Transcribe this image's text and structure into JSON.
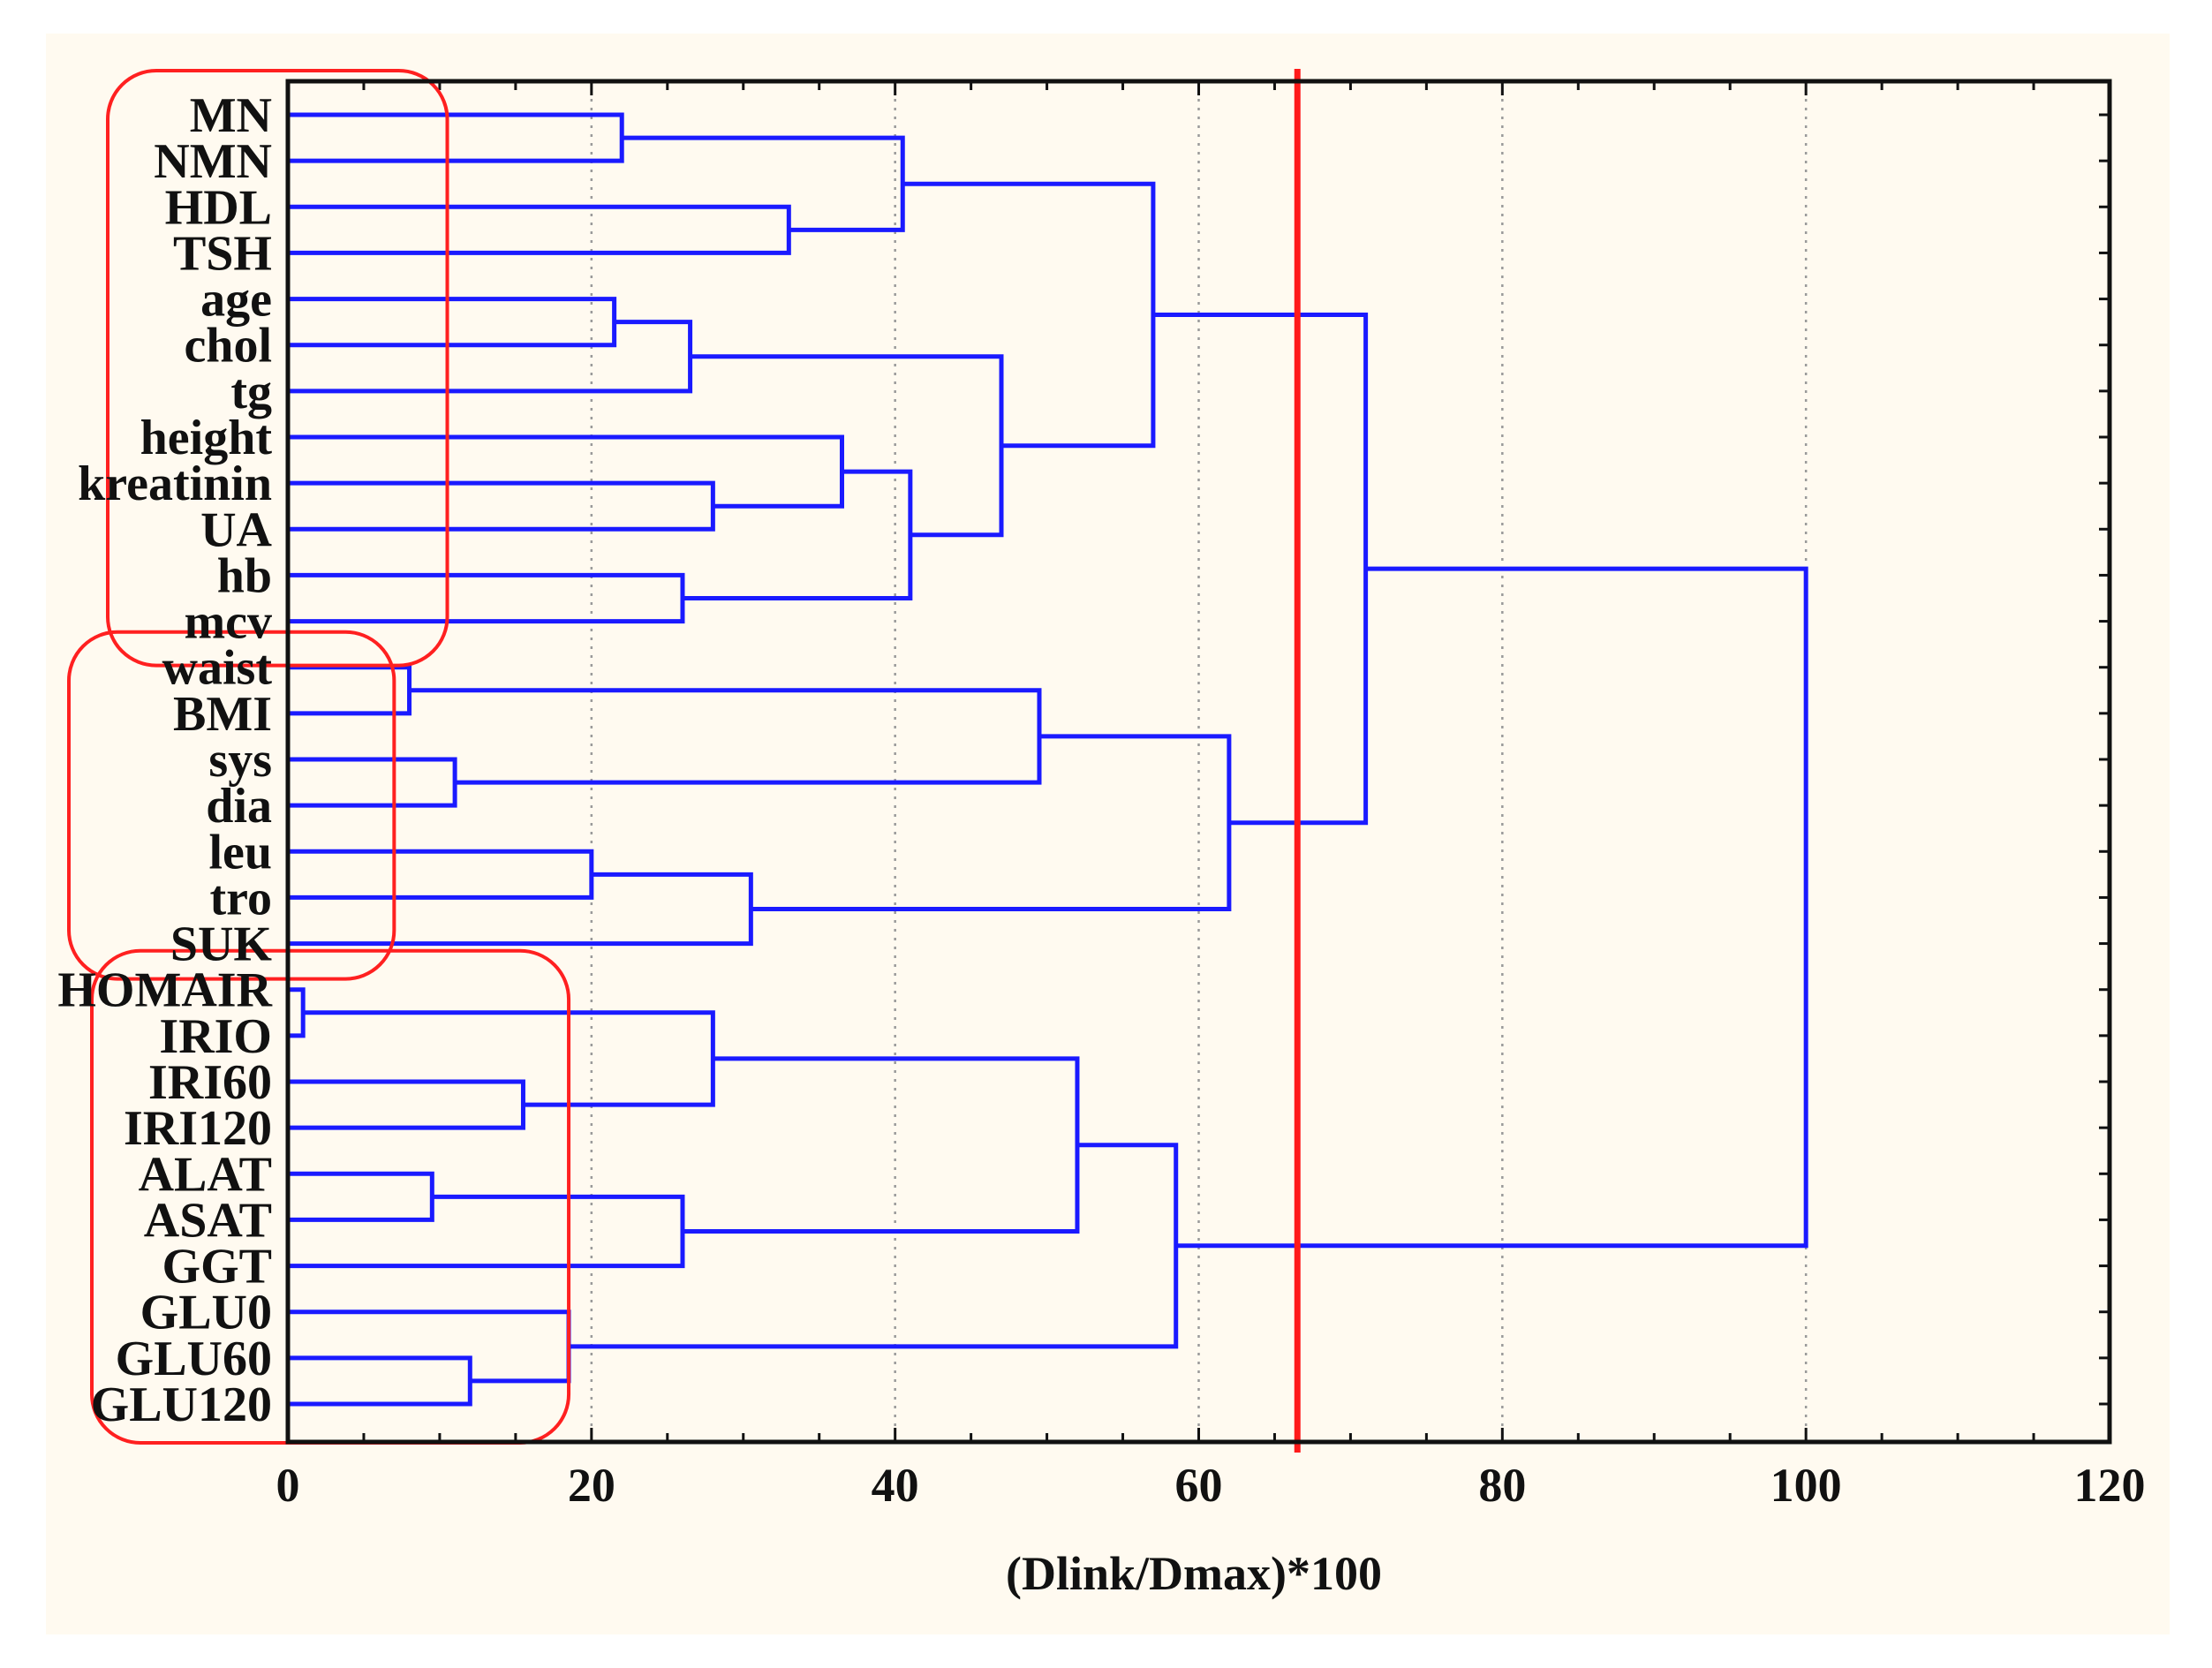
{
  "chart_data": {
    "type": "dendrogram",
    "orientation": "horizontal",
    "xlabel": "(Dlink/Dmax)*100",
    "xlim": [
      0,
      120
    ],
    "x_ticks": [
      0,
      20,
      40,
      60,
      80,
      100,
      120
    ],
    "x_tick_labels": [
      "0",
      "20",
      "40",
      "60",
      "80",
      "100",
      "120"
    ],
    "grid": "vertical dotted",
    "leaves": [
      "MN",
      "NMN",
      "HDL",
      "TSH",
      "age",
      "chol",
      "tg",
      "height",
      "kreatinin",
      "UA",
      "hb",
      "mcv",
      "waist",
      "BMI",
      "sys",
      "dia",
      "leu",
      "tro",
      "SUK",
      "HOMAIR",
      "IRIO",
      "IRI60",
      "IRI120",
      "ALAT",
      "ASAT",
      "GGT",
      "GLU0",
      "GLU60",
      "GLU120"
    ],
    "merges": [
      {
        "a": "MN",
        "b": "NMN",
        "height": 22
      },
      {
        "a": "HDL",
        "b": "TSH",
        "height": 33
      },
      {
        "a": "age",
        "b": "chol",
        "height": 21.5
      },
      {
        "a": "tg",
        "b": "age+chol",
        "height": 26.5
      },
      {
        "a": "kreatinin",
        "b": "UA",
        "height": 28
      },
      {
        "a": "height",
        "b": "kreatinin+UA",
        "height": 36.5
      },
      {
        "a": "hb",
        "b": "mcv",
        "height": 26
      },
      {
        "a": "height+kreatinin+UA",
        "b": "hb+mcv",
        "height": 41
      },
      {
        "a": "MN+NMN",
        "b": "HDL+TSH",
        "height": 40.5
      },
      {
        "a": "age+chol+tg",
        "b": "height+kreatinin+UA+hb+mcv",
        "height": 47
      },
      {
        "a": "MN..TSH",
        "b": "age..mcv",
        "height": 57
      },
      {
        "a": "waist",
        "b": "BMI",
        "height": 8
      },
      {
        "a": "sys",
        "b": "dia",
        "height": 11
      },
      {
        "a": "waist+BMI",
        "b": "sys+dia",
        "height": 49.5
      },
      {
        "a": "leu",
        "b": "tro",
        "height": 20
      },
      {
        "a": "leu+tro",
        "b": "SUK",
        "height": 30.5
      },
      {
        "a": "waist..dia",
        "b": "leu..SUK",
        "height": 62
      },
      {
        "a": "MN..mcv",
        "b": "waist..SUK",
        "height": 71
      },
      {
        "a": "HOMAIR",
        "b": "IRIO",
        "height": 1
      },
      {
        "a": "IRI60",
        "b": "IRI120",
        "height": 15.5
      },
      {
        "a": "HOMAIR+IRIO",
        "b": "IRI60+IRI120",
        "height": 28
      },
      {
        "a": "ALAT",
        "b": "ASAT",
        "height": 9.5
      },
      {
        "a": "ALAT+ASAT",
        "b": "GGT",
        "height": 26
      },
      {
        "a": "HOMAIR..IRI120",
        "b": "ALAT..GGT",
        "height": 52
      },
      {
        "a": "GLU60",
        "b": "GLU120",
        "height": 12
      },
      {
        "a": "GLU0",
        "b": "GLU60+GLU120",
        "height": 18.5
      },
      {
        "a": "HOMAIR..GGT",
        "b": "GLU0..GLU120",
        "height": 58.5
      },
      {
        "a": "MN..SUK",
        "b": "HOMAIR..GLU120",
        "height": 100
      }
    ],
    "cutoff": 66.5,
    "cluster_boxes": [
      {
        "first": "MN",
        "last": "mcv",
        "reach": 10.5
      },
      {
        "first": "waist",
        "last": "SUK",
        "reach": 7
      },
      {
        "first": "HOMAIR",
        "last": "GLU120",
        "reach": 18.5
      }
    ],
    "colors": {
      "links": "#1a1aff",
      "cutoff": "#ff1a1a",
      "boxes": "#ff2020",
      "frame": "#111111",
      "grid": "#9a9a9a",
      "background": "#fffaf0"
    }
  }
}
